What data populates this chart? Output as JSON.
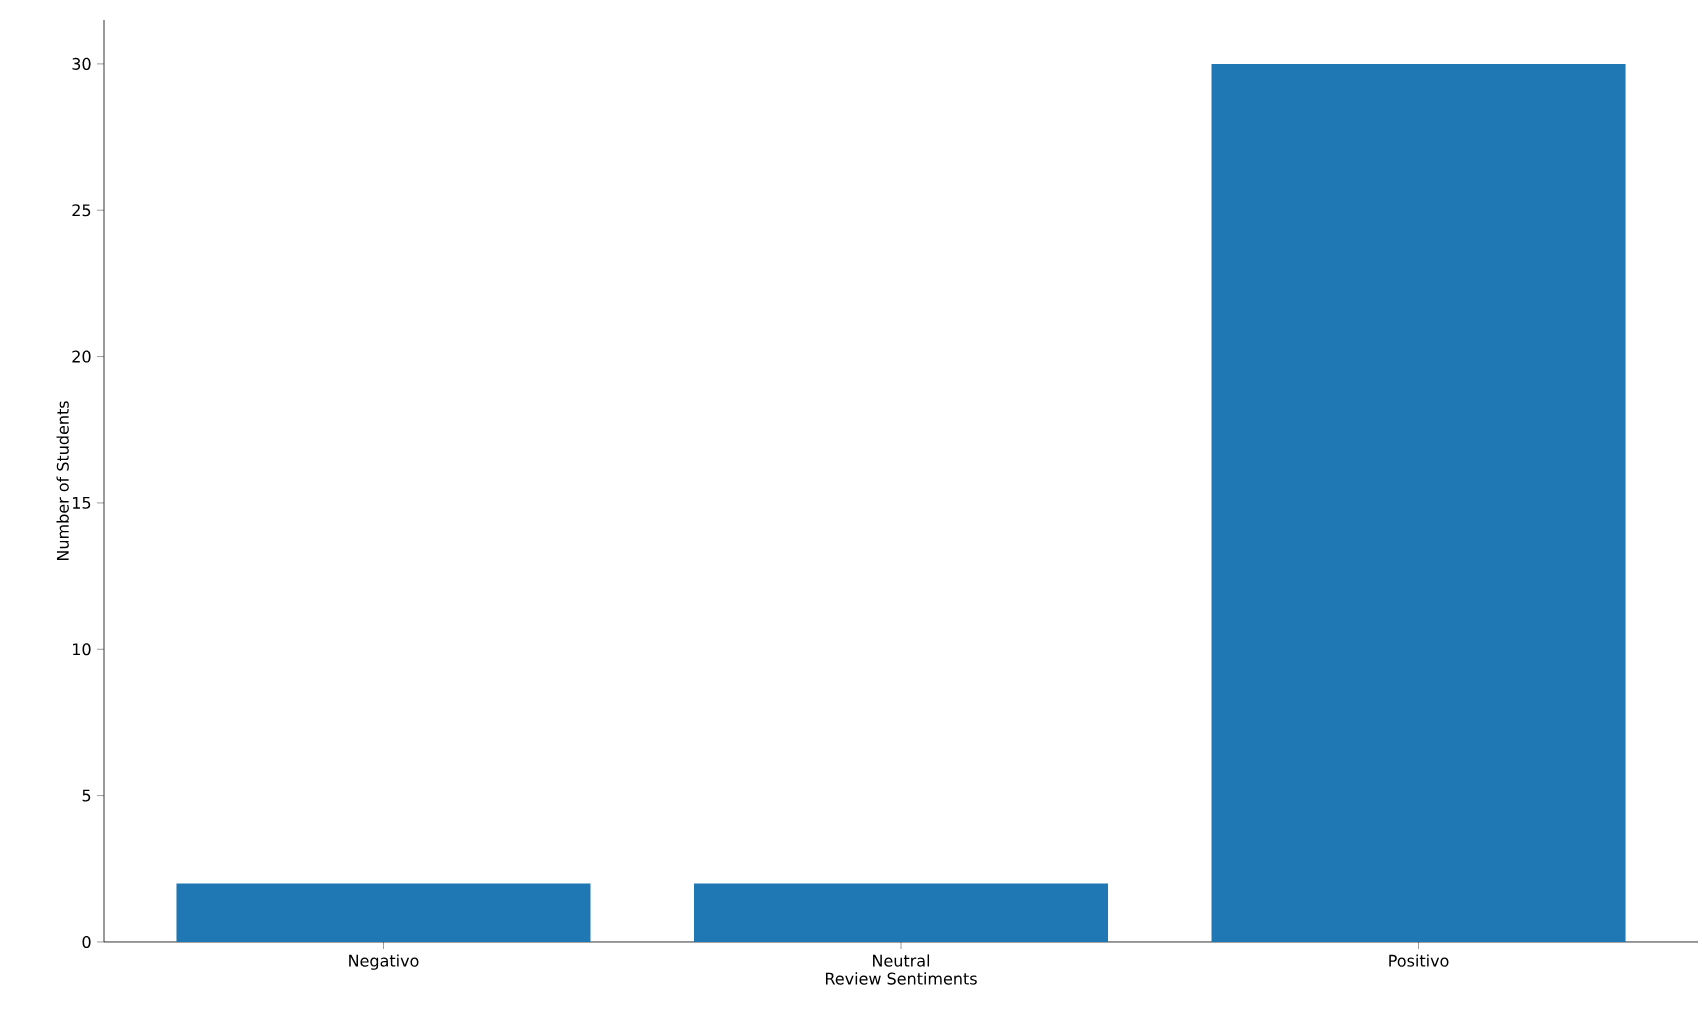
{
  "chart_data": {
    "type": "bar",
    "xlabel": "Review Sentiments",
    "ylabel": "Number of Students",
    "categories": [
      "Negativo",
      "Neutral",
      "Positivo"
    ],
    "values": [
      2,
      2,
      30
    ],
    "color": "#1f77b4",
    "ylim": [
      0,
      31.5
    ],
    "yticks": [
      0,
      5,
      10,
      15,
      20,
      25,
      30
    ],
    "grid": false
  }
}
